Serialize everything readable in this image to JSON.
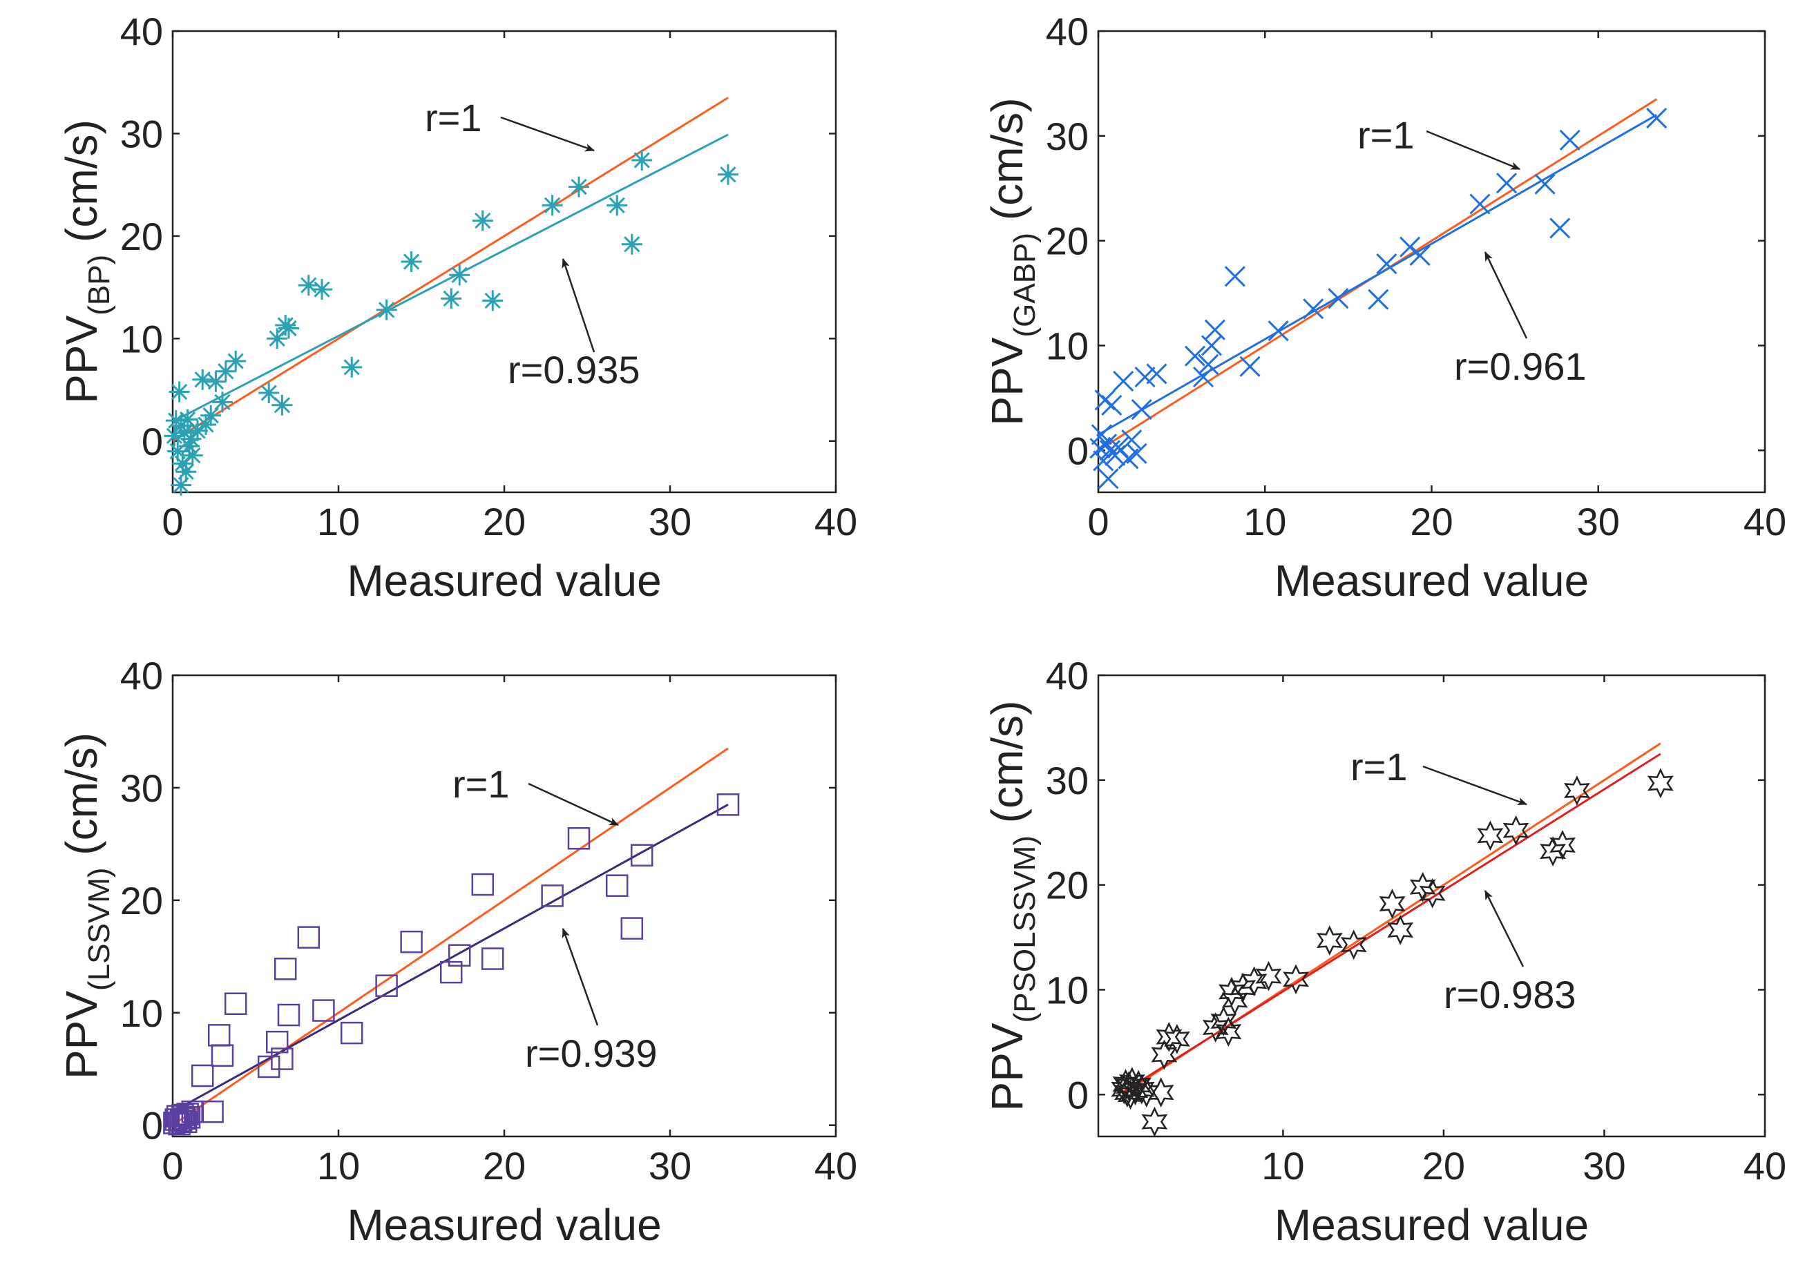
{
  "figure": {
    "colors": {
      "reference": "#ff5a1f",
      "axis": "#222222",
      "text": "#222222"
    }
  },
  "chart_data": [
    {
      "type": "scatter",
      "title": "",
      "xlabel": "Measured value",
      "ylabel": {
        "main": "PPV",
        "subscript": "(BP)",
        "units": "(cm/s)"
      },
      "xlim": [
        0,
        40
      ],
      "ylim": [
        -5,
        40
      ],
      "xticks": [
        "0",
        "10",
        "20",
        "30",
        "40"
      ],
      "yticks": [
        "0",
        "10",
        "20",
        "30",
        "40"
      ],
      "marker": "asterisk",
      "color": "#2aa2b4",
      "fit_color": "#2aa2b4",
      "ref_label": "r=1",
      "fit_label": "r=0.935",
      "reference_line": {
        "x": [
          0,
          33.5
        ],
        "y": [
          0,
          33.5
        ]
      },
      "fit_line": {
        "x": [
          0,
          33.5
        ],
        "y": [
          1.9,
          29.9
        ]
      },
      "points": [
        [
          0.1,
          0.5
        ],
        [
          0.2,
          2.0
        ],
        [
          0.3,
          -1.0
        ],
        [
          0.4,
          4.8
        ],
        [
          0.5,
          1.5
        ],
        [
          0.6,
          -2.2
        ],
        [
          0.7,
          0.8
        ],
        [
          0.8,
          -3.0
        ],
        [
          0.9,
          2.1
        ],
        [
          1.0,
          -0.5
        ],
        [
          0.5,
          -4.3
        ],
        [
          1.1,
          0.2
        ],
        [
          1.2,
          -1.4
        ],
        [
          1.5,
          1.0
        ],
        [
          1.8,
          6.0
        ],
        [
          2.0,
          1.6
        ],
        [
          2.3,
          2.5
        ],
        [
          2.6,
          5.8
        ],
        [
          3.0,
          3.8
        ],
        [
          3.2,
          6.8
        ],
        [
          3.8,
          7.8
        ],
        [
          5.8,
          4.7
        ],
        [
          6.3,
          10.0
        ],
        [
          6.6,
          3.5
        ],
        [
          6.8,
          11.3
        ],
        [
          7.0,
          11.0
        ],
        [
          8.2,
          15.2
        ],
        [
          9.0,
          14.8
        ],
        [
          10.8,
          7.2
        ],
        [
          12.9,
          12.8
        ],
        [
          14.4,
          17.5
        ],
        [
          16.8,
          13.9
        ],
        [
          17.3,
          16.2
        ],
        [
          18.7,
          21.5
        ],
        [
          19.3,
          13.7
        ],
        [
          22.9,
          23.0
        ],
        [
          24.5,
          24.8
        ],
        [
          26.8,
          23.0
        ],
        [
          27.7,
          19.2
        ],
        [
          28.3,
          27.4
        ],
        [
          33.5,
          26.0
        ]
      ]
    },
    {
      "type": "scatter",
      "title": "",
      "xlabel": "Measured value",
      "ylabel": {
        "main": "PPV",
        "subscript": "(GABP)",
        "units": "(cm/s)"
      },
      "xlim": [
        0,
        40
      ],
      "ylim": [
        -4,
        40
      ],
      "xticks": [
        "0",
        "10",
        "20",
        "30",
        "40"
      ],
      "yticks": [
        "0",
        "10",
        "20",
        "30",
        "40"
      ],
      "marker": "x",
      "color": "#1f6fe0",
      "fit_color": "#1f6fe0",
      "ref_label": "r=1",
      "fit_label": "r=0.961",
      "reference_line": {
        "x": [
          0,
          33.5
        ],
        "y": [
          0,
          33.5
        ]
      },
      "fit_line": {
        "x": [
          0,
          33.5
        ],
        "y": [
          1.5,
          32.0
        ]
      },
      "points": [
        [
          0.1,
          0.2
        ],
        [
          0.2,
          1.5
        ],
        [
          0.3,
          -1.0
        ],
        [
          0.4,
          4.8
        ],
        [
          0.5,
          0.6
        ],
        [
          0.6,
          -2.7
        ],
        [
          0.7,
          0.0
        ],
        [
          0.8,
          4.3
        ],
        [
          1.0,
          -0.5
        ],
        [
          1.2,
          0.3
        ],
        [
          1.5,
          6.6
        ],
        [
          1.8,
          -0.8
        ],
        [
          2.0,
          1.0
        ],
        [
          2.3,
          -0.3
        ],
        [
          2.6,
          3.9
        ],
        [
          2.8,
          7.0
        ],
        [
          3.5,
          7.3
        ],
        [
          5.8,
          9.0
        ],
        [
          6.3,
          7.0
        ],
        [
          6.6,
          8.2
        ],
        [
          6.8,
          10.0
        ],
        [
          7.0,
          11.5
        ],
        [
          8.2,
          16.6
        ],
        [
          9.1,
          8.0
        ],
        [
          10.8,
          11.4
        ],
        [
          12.9,
          13.5
        ],
        [
          14.4,
          14.5
        ],
        [
          16.8,
          14.4
        ],
        [
          17.3,
          17.8
        ],
        [
          18.7,
          19.4
        ],
        [
          19.3,
          18.6
        ],
        [
          22.9,
          23.5
        ],
        [
          24.5,
          25.5
        ],
        [
          26.8,
          25.4
        ],
        [
          27.7,
          21.2
        ],
        [
          28.3,
          29.6
        ],
        [
          33.5,
          31.7
        ]
      ]
    },
    {
      "type": "scatter",
      "title": "",
      "xlabel": "Measured value",
      "ylabel": {
        "main": "PPV",
        "subscript": "(LSSVM)",
        "units": "(cm/s)"
      },
      "xlim": [
        0,
        40
      ],
      "ylim": [
        -1,
        40
      ],
      "xticks": [
        "0",
        "10",
        "20",
        "30",
        "40"
      ],
      "yticks": [
        "0",
        "10",
        "20",
        "30",
        "40"
      ],
      "marker": "square",
      "color": "#5a3fa0",
      "fit_color": "#3d2a7a",
      "ref_label": "r=1",
      "fit_label": "r=0.939",
      "reference_line": {
        "x": [
          0,
          33.5
        ],
        "y": [
          0,
          33.5
        ]
      },
      "fit_line": {
        "x": [
          0,
          33.5
        ],
        "y": [
          1.2,
          28.5
        ]
      },
      "points": [
        [
          0.1,
          0.2
        ],
        [
          0.2,
          0.5
        ],
        [
          0.3,
          0.8
        ],
        [
          0.4,
          0.1
        ],
        [
          0.5,
          0.4
        ],
        [
          0.6,
          0.9
        ],
        [
          0.7,
          0.6
        ],
        [
          0.8,
          0.3
        ],
        [
          0.9,
          1.0
        ],
        [
          1.0,
          0.7
        ],
        [
          1.2,
          1.2
        ],
        [
          1.8,
          4.4
        ],
        [
          2.4,
          1.2
        ],
        [
          2.8,
          8.0
        ],
        [
          3.0,
          6.2
        ],
        [
          3.8,
          10.8
        ],
        [
          5.8,
          5.2
        ],
        [
          6.3,
          7.4
        ],
        [
          6.6,
          5.9
        ],
        [
          6.8,
          13.9
        ],
        [
          7.0,
          9.8
        ],
        [
          8.2,
          16.7
        ],
        [
          9.1,
          10.2
        ],
        [
          10.8,
          8.2
        ],
        [
          12.9,
          12.4
        ],
        [
          14.4,
          16.3
        ],
        [
          16.8,
          13.6
        ],
        [
          17.3,
          15.1
        ],
        [
          18.7,
          21.4
        ],
        [
          19.3,
          14.8
        ],
        [
          22.9,
          20.4
        ],
        [
          24.5,
          25.5
        ],
        [
          26.8,
          21.3
        ],
        [
          27.7,
          17.5
        ],
        [
          28.3,
          24.0
        ],
        [
          33.5,
          28.5
        ]
      ]
    },
    {
      "type": "scatter",
      "title": "",
      "xlabel": "Measured value",
      "ylabel": {
        "main": "PPV",
        "subscript": "(PSOLSSVM)",
        "units": "(cm/s)"
      },
      "xlim": [
        -1.5,
        40
      ],
      "ylim": [
        -4,
        40
      ],
      "xticks": [
        "10",
        "20",
        "30",
        "40"
      ],
      "yticks": [
        "0",
        "10",
        "20",
        "30",
        "40"
      ],
      "marker": "hexagram",
      "color": "#222222",
      "fit_color": "#e02020",
      "ref_label": "r=1",
      "fit_label": "r=0.983",
      "reference_line": {
        "x": [
          0,
          33.5
        ],
        "y": [
          0,
          33.5
        ]
      },
      "fit_line": {
        "x": [
          0,
          33.5
        ],
        "y": [
          0.2,
          32.5
        ]
      },
      "points": [
        [
          0.1,
          0.5
        ],
        [
          0.2,
          1.0
        ],
        [
          0.3,
          0.2
        ],
        [
          0.4,
          0.8
        ],
        [
          0.5,
          0.0
        ],
        [
          0.6,
          1.2
        ],
        [
          0.8,
          0.4
        ],
        [
          1.0,
          0.9
        ],
        [
          1.2,
          0.5
        ],
        [
          1.5,
          0.2
        ],
        [
          2.0,
          -2.6
        ],
        [
          2.4,
          0.2
        ],
        [
          2.6,
          3.8
        ],
        [
          2.9,
          5.5
        ],
        [
          3.4,
          5.3
        ],
        [
          5.8,
          6.4
        ],
        [
          6.3,
          7.0
        ],
        [
          6.6,
          6.0
        ],
        [
          6.8,
          9.8
        ],
        [
          7.0,
          9.0
        ],
        [
          7.5,
          10.2
        ],
        [
          8.2,
          10.8
        ],
        [
          9.1,
          11.3
        ],
        [
          10.8,
          11.0
        ],
        [
          12.9,
          14.7
        ],
        [
          14.4,
          14.3
        ],
        [
          16.8,
          18.2
        ],
        [
          17.3,
          15.7
        ],
        [
          18.7,
          19.8
        ],
        [
          19.3,
          19.2
        ],
        [
          22.9,
          24.7
        ],
        [
          24.5,
          25.2
        ],
        [
          26.8,
          23.2
        ],
        [
          27.4,
          23.8
        ],
        [
          28.3,
          29.0
        ],
        [
          33.5,
          29.7
        ]
      ]
    }
  ]
}
